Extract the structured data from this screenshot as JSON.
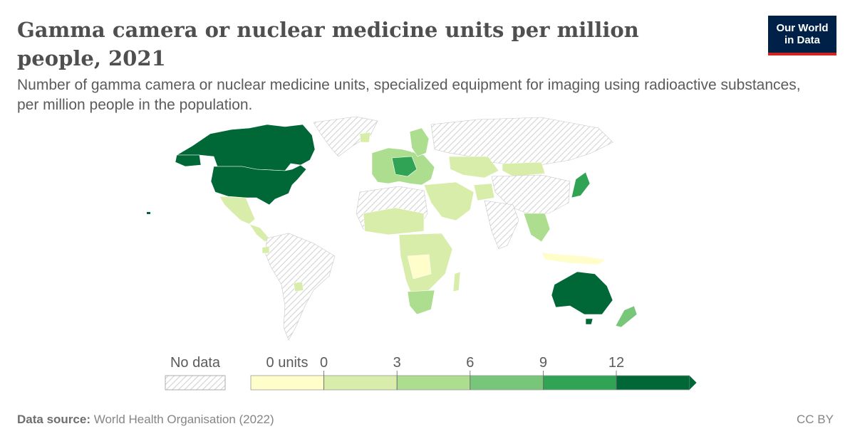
{
  "header": {
    "title": "Gamma camera or nuclear medicine units per million people, 2021",
    "subtitle": "Number of gamma camera or nuclear medicine units, specialized equipment for imaging using radioactive substances, per million people in the population."
  },
  "logo": {
    "line1": "Our World",
    "line2": "in Data"
  },
  "legend": {
    "no_data_label": "No data",
    "zero_units_label": "0 units",
    "bins": [
      "0",
      "3",
      "6",
      "9",
      "12"
    ],
    "colors": [
      "#fffdc9",
      "#d9edaa",
      "#addd8e",
      "#78c679",
      "#31a354",
      "#006837"
    ]
  },
  "map": {
    "highlighted_regions": [
      {
        "name": "Canada",
        "bin": 5
      },
      {
        "name": "United States",
        "bin": 5
      },
      {
        "name": "Australia",
        "bin": 5
      },
      {
        "name": "Japan",
        "bin": 4
      },
      {
        "name": "Mexico",
        "bin": 1
      },
      {
        "name": "Brazil",
        "bin": -1
      },
      {
        "name": "New Zealand",
        "bin": 3
      }
    ]
  },
  "footer": {
    "source_label": "Data source:",
    "source_text": "World Health Organisation (2022)",
    "license": "CC BY"
  }
}
